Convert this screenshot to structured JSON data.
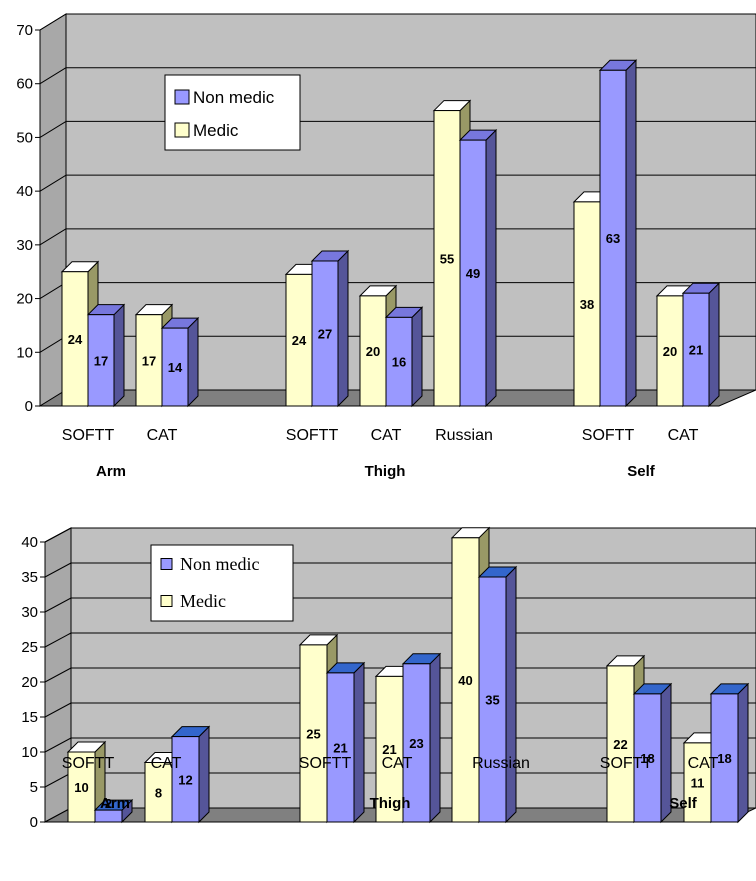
{
  "charts": [
    {
      "type": "bar",
      "ylim": [
        0,
        70
      ],
      "yticks": [
        0,
        10,
        20,
        30,
        40,
        50,
        60,
        70
      ],
      "grid": true,
      "legend": {
        "position": "top-left",
        "entries": [
          "Non medic",
          "Medic"
        ]
      },
      "groups": [
        {
          "label": "Arm",
          "categories": [
            "SOFTT",
            "CAT"
          ]
        },
        {
          "label": "Thigh",
          "categories": [
            "SOFTT",
            "CAT",
            "Russian"
          ]
        },
        {
          "label": "Self",
          "categories": [
            "SOFTT",
            "CAT"
          ]
        }
      ],
      "categories": [
        "SOFTT",
        "CAT",
        "SOFTT",
        "CAT",
        "Russian",
        "SOFTT",
        "CAT"
      ],
      "series": [
        {
          "name": "Medic",
          "values": [
            24,
            17,
            24,
            20,
            55,
            38,
            20
          ]
        },
        {
          "name": "Non medic",
          "values": [
            17,
            14,
            27,
            16,
            49,
            63,
            21
          ]
        }
      ],
      "drawn_heights": {
        "Medic": [
          25,
          17,
          24.5,
          20.5,
          55,
          38,
          20.5
        ],
        "Non medic": [
          17,
          14.5,
          27,
          16.5,
          49.5,
          62.5,
          21
        ]
      },
      "colors": {
        "medic": "#ffffcc",
        "medic_top": "#ffffff",
        "medic_side": "#999966",
        "non_medic": "#9999ff",
        "non_medic_top": "#7777dd",
        "non_medic_side": "#555599",
        "wall": "#c0c0c0",
        "floor": "#808080"
      }
    },
    {
      "type": "bar",
      "ylim": [
        0,
        40
      ],
      "yticks": [
        0,
        5,
        10,
        15,
        20,
        25,
        30,
        35,
        40
      ],
      "grid": true,
      "legend": {
        "position": "top-left",
        "entries": [
          "Non medic",
          "Medic"
        ]
      },
      "groups": [
        {
          "label": "Arm",
          "categories": [
            "SOFTT",
            "CAT"
          ]
        },
        {
          "label": "Thigh",
          "categories": [
            "SOFTT",
            "CAT",
            "Russian"
          ]
        },
        {
          "label": "Self",
          "categories": [
            "SOFTT",
            "CAT"
          ]
        }
      ],
      "categories": [
        "SOFTT",
        "CAT",
        "SOFTT",
        "CAT",
        "Russian",
        "SOFTT",
        "CAT"
      ],
      "series": [
        {
          "name": "Medic",
          "values": [
            10,
            8,
            25,
            21,
            40,
            22,
            11
          ]
        },
        {
          "name": "Non medic",
          "values": [
            2,
            12,
            21,
            23,
            35,
            18,
            18
          ]
        }
      ],
      "drawn_heights": {
        "Medic": [
          10,
          8.5,
          25.3,
          20.8,
          40.6,
          22.3,
          11.3
        ],
        "Non medic": [
          1.7,
          12.2,
          21.3,
          22.6,
          35,
          18.3,
          18.3
        ]
      },
      "colors": {
        "medic": "#ffffcc",
        "medic_top": "#ffffff",
        "medic_side": "#999966",
        "non_medic": "#9999ff",
        "non_medic_top": "#3366cc",
        "non_medic_side": "#555599",
        "wall": "#c0c0c0",
        "floor": "#808080"
      }
    }
  ]
}
